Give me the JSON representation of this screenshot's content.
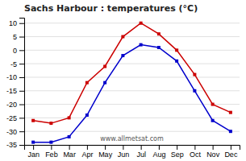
{
  "chart_data": {
    "type": "line",
    "title": "Sachs Harbour : temperatures (°C)",
    "categories": [
      "Jan",
      "Feb",
      "Mar",
      "Apr",
      "May",
      "Jun",
      "Jul",
      "Aug",
      "Sep",
      "Oct",
      "Nov",
      "Dec"
    ],
    "series": [
      {
        "color": "#cc0000",
        "values": [
          -26,
          -27,
          -25,
          -12,
          -6,
          5,
          10,
          6,
          0,
          -9,
          -20,
          -23
        ]
      },
      {
        "color": "#0000cc",
        "values": [
          -34,
          -34,
          -32,
          -24,
          -12,
          -2,
          2,
          1,
          -4,
          -15,
          -26,
          -30
        ]
      }
    ],
    "ylim": [
      -35,
      12
    ],
    "yticks": [
      -35,
      -30,
      -25,
      -20,
      -15,
      -10,
      -5,
      0,
      5,
      10
    ],
    "grid": true,
    "marker": "square",
    "annotations": [
      "www.allmetsat.com"
    ]
  }
}
